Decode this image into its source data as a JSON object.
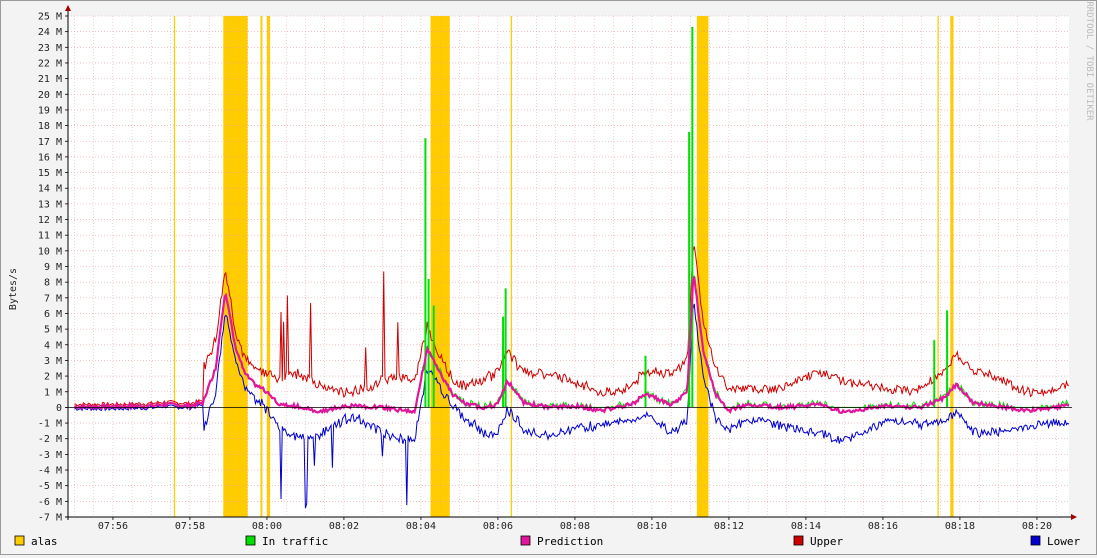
{
  "chart_data": {
    "type": "line",
    "ylabel": "Bytes/s",
    "watermark": "RRDTOOL / TOBI OETIKER",
    "x_start_min": "07:55",
    "x_end_min": "08:20:50",
    "xlim": [
      "07:54:50",
      "08:20:50"
    ],
    "ylim": [
      -7,
      25
    ],
    "y_unit": "M",
    "grid": true,
    "x_ticks": [
      "07:56",
      "07:58",
      "08:00",
      "08:02",
      "08:04",
      "08:06",
      "08:08",
      "08:10",
      "08:12",
      "08:14",
      "08:16",
      "08:18",
      "08:20"
    ],
    "y_ticks": [
      "25 M",
      "24 M",
      "23 M",
      "22 M",
      "21 M",
      "20 M",
      "19 M",
      "18 M",
      "17 M",
      "16 M",
      "15 M",
      "14 M",
      "13 M",
      "12 M",
      "11 M",
      "10 M",
      "9 M",
      "8 M",
      "7 M",
      "6 M",
      "5 M",
      "4 M",
      "3 M",
      "2 M",
      "1 M",
      "0",
      "-1 M",
      "-2 M",
      "-3 M",
      "-4 M",
      "-5 M",
      "-6 M",
      "-7 M"
    ],
    "legend": [
      {
        "key": "alas",
        "label": "alas",
        "color": "#ffcc00"
      },
      {
        "key": "in",
        "label": "In traffic",
        "color": "#00e000"
      },
      {
        "key": "pred",
        "label": "Prediction",
        "color": "#e0179c"
      },
      {
        "key": "upper",
        "label": "Upper",
        "color": "#d00000"
      },
      {
        "key": "lower",
        "label": "Lower",
        "color": "#0000d0"
      }
    ],
    "alarm_bands": [
      [
        "07:57:35",
        "07:57:37"
      ],
      [
        "07:58:52",
        "07:59:30"
      ],
      [
        "07:59:50",
        "07:59:53"
      ],
      [
        "08:00:00",
        "08:00:05"
      ],
      [
        "08:04:15",
        "08:04:45"
      ],
      [
        "08:06:20",
        "08:06:22"
      ],
      [
        "08:11:10",
        "08:11:28"
      ],
      [
        "08:17:25",
        "08:17:27"
      ],
      [
        "08:17:45",
        "08:17:50"
      ]
    ],
    "series_in": [
      [
        "08:04:07",
        17.2
      ],
      [
        "08:04:12",
        8.2
      ],
      [
        "08:04:20",
        6.5
      ],
      [
        "08:06:12",
        7.6
      ],
      [
        "08:06:08",
        5.8
      ],
      [
        "08:09:50",
        3.3
      ],
      [
        "08:11:03",
        24.3
      ],
      [
        "08:10:58",
        17.6
      ],
      [
        "08:17:40",
        6.2
      ],
      [
        "08:17:20",
        4.3
      ]
    ],
    "prediction_points": [
      [
        "07:55:00",
        0.05
      ],
      [
        "07:56:00",
        0.05
      ],
      [
        "07:57:00",
        0.1
      ],
      [
        "07:57:20",
        0.2
      ],
      [
        "07:58:00",
        0.1
      ],
      [
        "07:58:20",
        0.3
      ],
      [
        "07:58:40",
        2.5
      ],
      [
        "07:58:55",
        7.5
      ],
      [
        "07:59:10",
        4.0
      ],
      [
        "07:59:25",
        2.2
      ],
      [
        "07:59:40",
        1.5
      ],
      [
        "08:00:00",
        1.0
      ],
      [
        "08:00:20",
        0.2
      ],
      [
        "08:01:00",
        0.0
      ],
      [
        "08:01:20",
        -0.3
      ],
      [
        "08:02:00",
        0.1
      ],
      [
        "08:03:00",
        0.0
      ],
      [
        "08:03:50",
        -0.3
      ],
      [
        "08:04:10",
        3.8
      ],
      [
        "08:04:30",
        2.2
      ],
      [
        "08:04:50",
        0.8
      ],
      [
        "08:05:10",
        0.2
      ],
      [
        "08:05:40",
        0.0
      ],
      [
        "08:06:00",
        0.2
      ],
      [
        "08:06:15",
        1.7
      ],
      [
        "08:06:40",
        0.3
      ],
      [
        "08:07:20",
        0.0
      ],
      [
        "08:08:00",
        0.1
      ],
      [
        "08:08:40",
        -0.2
      ],
      [
        "08:09:30",
        0.2
      ],
      [
        "08:09:50",
        0.9
      ],
      [
        "08:10:30",
        0.1
      ],
      [
        "08:10:55",
        1.0
      ],
      [
        "08:11:05",
        8.7
      ],
      [
        "08:11:20",
        3.5
      ],
      [
        "08:11:40",
        0.8
      ],
      [
        "08:12:00",
        -0.2
      ],
      [
        "08:12:30",
        0.2
      ],
      [
        "08:13:30",
        0.0
      ],
      [
        "08:14:20",
        0.2
      ],
      [
        "08:15:00",
        -0.3
      ],
      [
        "08:16:00",
        0.1
      ],
      [
        "08:17:00",
        0.0
      ],
      [
        "08:17:35",
        0.6
      ],
      [
        "08:17:55",
        1.5
      ],
      [
        "08:18:20",
        0.3
      ],
      [
        "08:19:00",
        0.1
      ],
      [
        "08:19:40",
        -0.2
      ],
      [
        "08:20:50",
        0.1
      ]
    ]
  }
}
